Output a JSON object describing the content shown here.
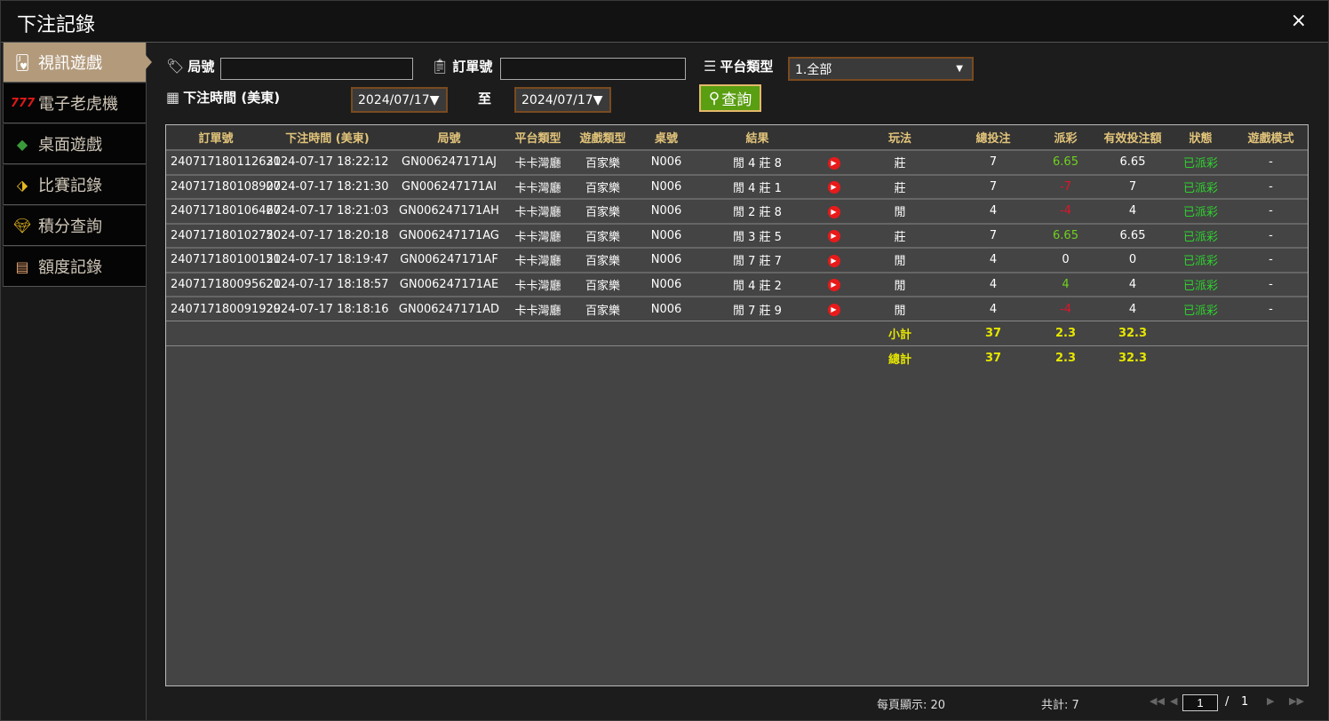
{
  "window": {
    "title": "下注記錄",
    "close": "×"
  },
  "sidebar": {
    "items": [
      {
        "label": "視訊遊戲",
        "icon": "cards-icon",
        "active": true
      },
      {
        "label": "電子老虎機",
        "icon": "slot-777-icon"
      },
      {
        "label": "桌面遊戲",
        "icon": "dice-icon"
      },
      {
        "label": "比賽記錄",
        "icon": "ticket-icon"
      },
      {
        "label": "積分查詢",
        "icon": "diamond-icon"
      },
      {
        "label": "額度記錄",
        "icon": "document-icon"
      }
    ]
  },
  "filters": {
    "round_label": "局號",
    "round_value": "",
    "order_label": "訂單號",
    "order_value": "",
    "platform_label": "平台類型",
    "platform_value": "1.全部",
    "time_label": "下注時間 (美東)",
    "date_from": "2024/07/17▼",
    "to_label": "至",
    "date_to": "2024/07/17▼",
    "search_label": "查詢"
  },
  "table": {
    "headers": [
      "訂單號",
      "下注時間 (美東)",
      "局號",
      "平台類型",
      "遊戲類型",
      "桌號",
      "結果",
      "",
      "玩法",
      "總投注",
      "派彩",
      "有效投注額",
      "狀態",
      "遊戲模式"
    ],
    "rows": [
      [
        "240717180112631",
        "2024-07-17 18:22:12",
        "GN006247171AJ",
        "卡卡灣廳",
        "百家樂",
        "N006",
        "閒 4 莊 8",
        "",
        "莊",
        "7",
        "6.65",
        "6.65",
        "已派彩",
        "-"
      ],
      [
        "240717180108907",
        "2024-07-17 18:21:30",
        "GN006247171AI",
        "卡卡灣廳",
        "百家樂",
        "N006",
        "閒 4 莊 1",
        "",
        "莊",
        "7",
        "-7",
        "7",
        "已派彩",
        "-"
      ],
      [
        "240717180106467",
        "2024-07-17 18:21:03",
        "GN006247171AH",
        "卡卡灣廳",
        "百家樂",
        "N006",
        "閒 2 莊 8",
        "",
        "閒",
        "4",
        "-4",
        "4",
        "已派彩",
        "-"
      ],
      [
        "240717180102750",
        "2024-07-17 18:20:18",
        "GN006247171AG",
        "卡卡灣廳",
        "百家樂",
        "N006",
        "閒 3 莊 5",
        "",
        "莊",
        "7",
        "6.65",
        "6.65",
        "已派彩",
        "-"
      ],
      [
        "240717180100151",
        "2024-07-17 18:19:47",
        "GN006247171AF",
        "卡卡灣廳",
        "百家樂",
        "N006",
        "閒 7 莊 7",
        "",
        "閒",
        "4",
        "0",
        "0",
        "已派彩",
        "-"
      ],
      [
        "240717180095621",
        "2024-07-17 18:18:57",
        "GN006247171AE",
        "卡卡灣廳",
        "百家樂",
        "N006",
        "閒 4 莊 2",
        "",
        "閒",
        "4",
        "4",
        "4",
        "已派彩",
        "-"
      ],
      [
        "240717180091929",
        "2024-07-17 18:18:16",
        "GN006247171AD",
        "卡卡灣廳",
        "百家樂",
        "N006",
        "閒 7 莊 9",
        "",
        "閒",
        "4",
        "-4",
        "4",
        "已派彩",
        "-"
      ]
    ],
    "subtotal": {
      "label": "小計",
      "bet": "37",
      "payout": "2.3",
      "valid": "32.3"
    },
    "total": {
      "label": "總計",
      "bet": "37",
      "payout": "2.3",
      "valid": "32.3"
    }
  },
  "footer": {
    "per_page": "每頁顯示: 20",
    "count": "共計: 7",
    "page": "1",
    "sep": "/",
    "pages": "1"
  },
  "colors": {
    "win": "#6fd21e",
    "lose": "#e0142a",
    "status": "#2ed22e",
    "sum": "#e6e600",
    "accent": "#b29a7b"
  }
}
